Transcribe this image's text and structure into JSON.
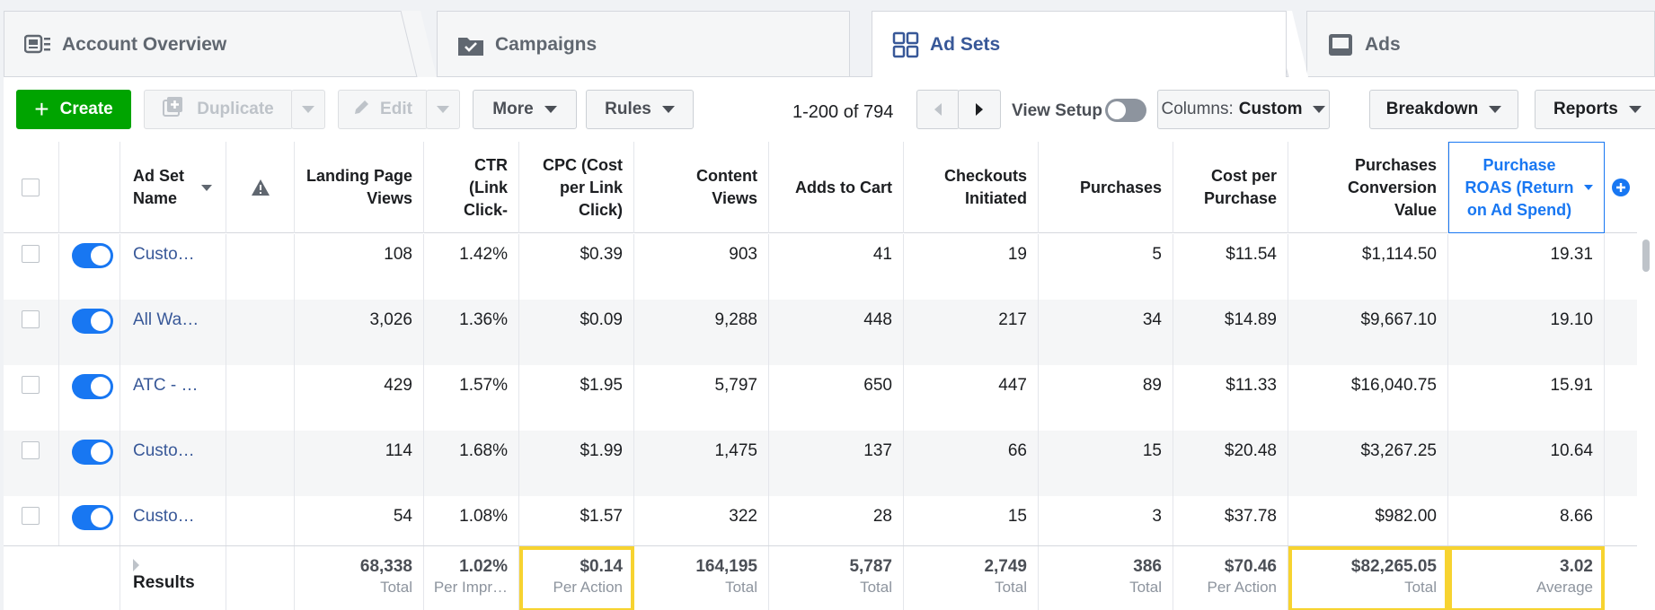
{
  "tabs": [
    {
      "label": "Account Overview",
      "icon": "account-overview-icon"
    },
    {
      "label": "Campaigns",
      "icon": "folder-check-icon"
    },
    {
      "label": "Ad Sets",
      "icon": "grid-icon",
      "active": true
    },
    {
      "label": "Ads",
      "icon": "ad-monitor-icon"
    }
  ],
  "toolbar": {
    "create_label": "Create",
    "duplicate_label": "Duplicate",
    "edit_label": "Edit",
    "more_label": "More",
    "rules_label": "Rules",
    "pagination_text": "1-200 of 794",
    "view_setup_label": "View Setup",
    "columns_prefix": "Columns:",
    "columns_value": "Custom",
    "breakdown_label": "Breakdown",
    "reports_label": "Reports"
  },
  "columns": {
    "ad_set_name": "Ad Set Name",
    "landing_page_views": "Landing Page Views",
    "ctr": "CTR (Link Click-",
    "cpc": "CPC (Cost per Link Click)",
    "content_views": "Content Views",
    "adds_to_cart": "Adds to Cart",
    "checkouts_initiated": "Checkouts Initiated",
    "purchases": "Purchases",
    "cost_per_purchase": "Cost per Purchase",
    "purchases_conversion_value": "Purchases Conversion Value",
    "purchase_roas": "Purchase ROAS (Return on Ad Spend)"
  },
  "rows": [
    {
      "name": "Custo…",
      "lpv": "108",
      "ctr": "1.42%",
      "cpc": "$0.39",
      "cv": "903",
      "atc": "41",
      "ci": "19",
      "pur": "5",
      "cpp": "$11.54",
      "pcv": "$1,114.50",
      "roas": "19.31"
    },
    {
      "name": "All Wa…",
      "lpv": "3,026",
      "ctr": "1.36%",
      "cpc": "$0.09",
      "cv": "9,288",
      "atc": "448",
      "ci": "217",
      "pur": "34",
      "cpp": "$14.89",
      "pcv": "$9,667.10",
      "roas": "19.10"
    },
    {
      "name": "ATC - …",
      "lpv": "429",
      "ctr": "1.57%",
      "cpc": "$1.95",
      "cv": "5,797",
      "atc": "650",
      "ci": "447",
      "pur": "89",
      "cpp": "$11.33",
      "pcv": "$16,040.75",
      "roas": "15.91"
    },
    {
      "name": "Custo…",
      "lpv": "114",
      "ctr": "1.68%",
      "cpc": "$1.99",
      "cv": "1,475",
      "atc": "137",
      "ci": "66",
      "pur": "15",
      "cpp": "$20.48",
      "pcv": "$3,267.25",
      "roas": "10.64"
    },
    {
      "name": "Custo…",
      "lpv": "54",
      "ctr": "1.08%",
      "cpc": "$1.57",
      "cv": "322",
      "atc": "28",
      "ci": "15",
      "pur": "3",
      "cpp": "$37.78",
      "pcv": "$982.00",
      "roas": "8.66"
    }
  ],
  "footer": {
    "label": "Results",
    "lpv": {
      "value": "68,338",
      "sub": "Total"
    },
    "ctr": {
      "value": "1.02%",
      "sub": "Per Impr…"
    },
    "cpc": {
      "value": "$0.14",
      "sub": "Per Action"
    },
    "cv": {
      "value": "164,195",
      "sub": "Total"
    },
    "atc": {
      "value": "5,787",
      "sub": "Total"
    },
    "ci": {
      "value": "2,749",
      "sub": "Total"
    },
    "pur": {
      "value": "386",
      "sub": "Total"
    },
    "cpp": {
      "value": "$70.46",
      "sub": "Per Action"
    },
    "pcv": {
      "value": "$82,265.05",
      "sub": "Total"
    },
    "roas": {
      "value": "3.02",
      "sub": "Average"
    }
  },
  "colors": {
    "accent": "#1877f2",
    "create": "#00a400",
    "link": "#385898",
    "highlight": "#f7d330"
  }
}
